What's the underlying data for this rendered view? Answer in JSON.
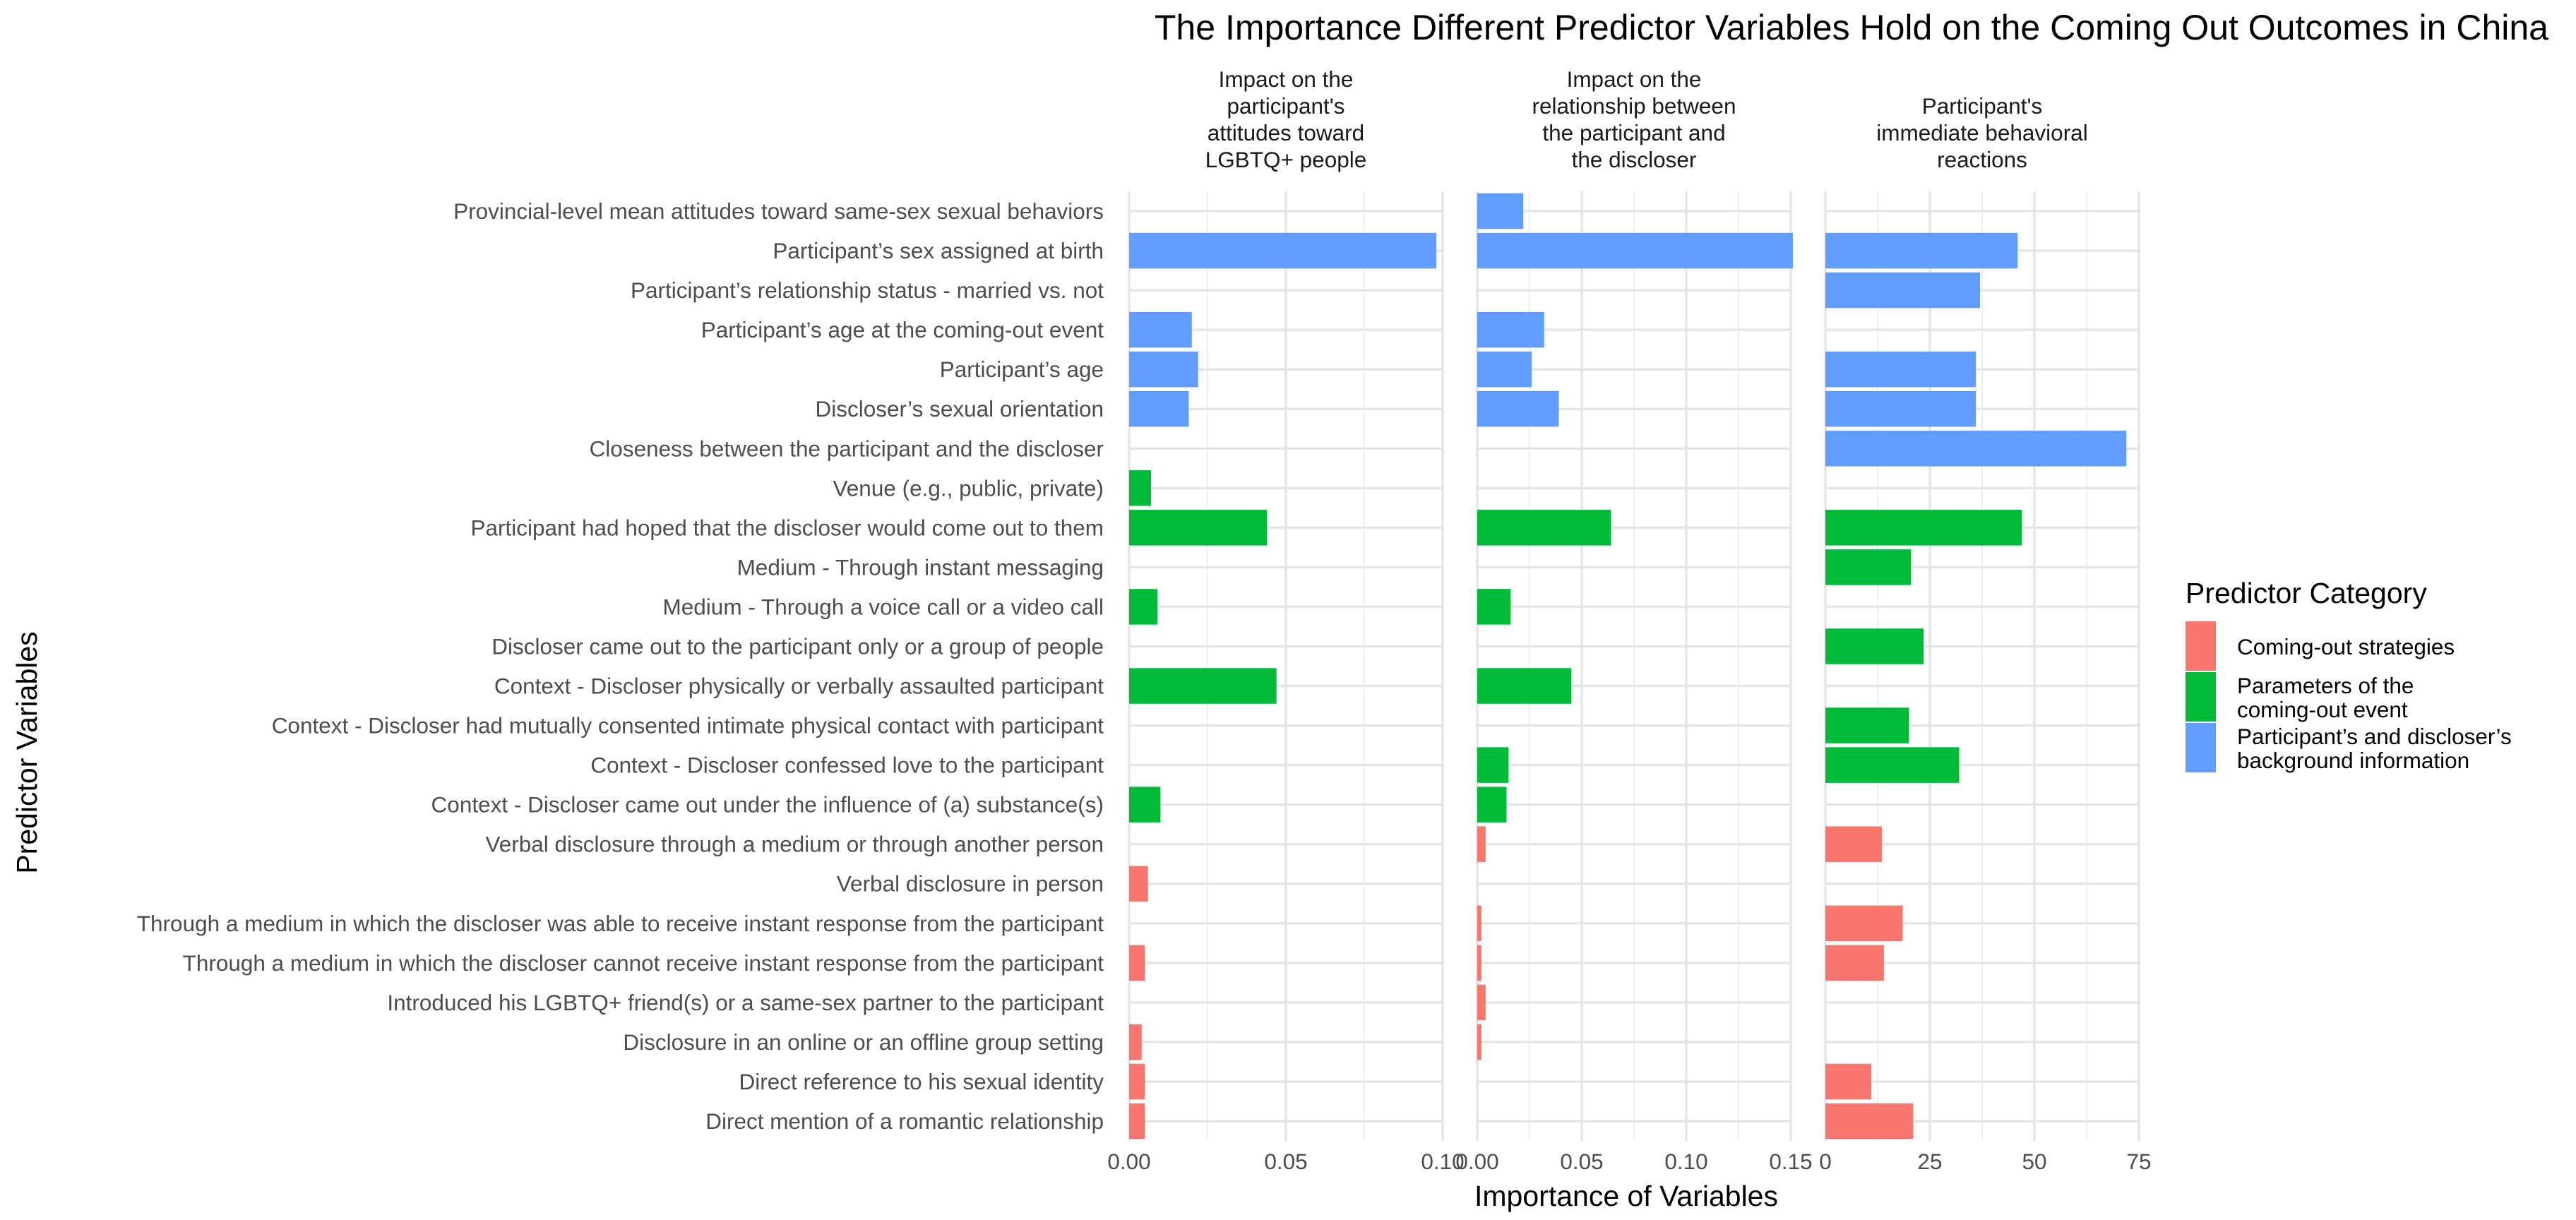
{
  "chart_data": {
    "type": "bar",
    "orientation": "horizontal",
    "title": "The Importance Different Predictor Variables Hold on the Coming Out Outcomes in China",
    "xlabel": "Importance of Variables",
    "ylabel": "Predictor Variables",
    "grid": true,
    "legend": {
      "title": "Predictor Category",
      "placement": "right",
      "entries": [
        {
          "key": "strategies",
          "label_lines": [
            "Coming-out strategies"
          ],
          "color": "#F8766D"
        },
        {
          "key": "parameters",
          "label_lines": [
            "Parameters of the  ",
            "coming-out event"
          ],
          "color": "#00BA38"
        },
        {
          "key": "background",
          "label_lines": [
            "Participant’s and discloser’s  ",
            "background information"
          ],
          "color": "#619CFF"
        }
      ]
    },
    "categories": [
      {
        "label": "Provincial-level mean attitudes toward same-sex sexual behaviors",
        "group": "background"
      },
      {
        "label": "Participant’s sex assigned at birth",
        "group": "background"
      },
      {
        "label": "Participant’s relationship status - married vs. not",
        "group": "background"
      },
      {
        "label": "Participant’s age at the coming-out event",
        "group": "background"
      },
      {
        "label": "Participant’s age",
        "group": "background"
      },
      {
        "label": "Discloser’s sexual orientation",
        "group": "background"
      },
      {
        "label": "Closeness between the participant and the discloser",
        "group": "background"
      },
      {
        "label": "Venue (e.g., public, private)",
        "group": "parameters"
      },
      {
        "label": "Participant had hoped that the discloser would come out to them",
        "group": "parameters"
      },
      {
        "label": "Medium - Through instant messaging",
        "group": "parameters"
      },
      {
        "label": "Medium - Through a voice call or a video call",
        "group": "parameters"
      },
      {
        "label": "Discloser came out to the participant only or a group of people",
        "group": "parameters"
      },
      {
        "label": "Context - Discloser physically or verbally assaulted participant",
        "group": "parameters"
      },
      {
        "label": "Context - Discloser had mutually consented intimate physical contact with participant",
        "group": "parameters"
      },
      {
        "label": "Context - Discloser confessed love to the participant",
        "group": "parameters"
      },
      {
        "label": "Context - Discloser came out under the influence of (a) substance(s)",
        "group": "parameters"
      },
      {
        "label": "Verbal disclosure through a medium or through another person",
        "group": "strategies"
      },
      {
        "label": "Verbal disclosure in person",
        "group": "strategies"
      },
      {
        "label": "Through a medium in which the discloser was able to receive instant response from the participant",
        "group": "strategies"
      },
      {
        "label": "Through a medium in which the discloser cannot receive instant response from the participant",
        "group": "strategies"
      },
      {
        "label": "Introduced his LGBTQ+ friend(s) or a same-sex partner to the participant",
        "group": "strategies"
      },
      {
        "label": "Disclosure in an online or an offline group setting",
        "group": "strategies"
      },
      {
        "label": "Direct reference to his sexual identity",
        "group": "strategies"
      },
      {
        "label": "Direct mention of a romantic relationship",
        "group": "strategies"
      }
    ],
    "panels": [
      {
        "strip_lines": [
          "Impact on the",
          "participant's",
          "attitudes toward",
          "LGBTQ+ people"
        ],
        "xlim": [
          0,
          0.1
        ],
        "ticks": [
          0,
          0.05,
          0.1
        ],
        "tick_labels": [
          "0.00",
          "0.05",
          "0.10"
        ],
        "values": [
          null,
          0.098,
          null,
          0.02,
          0.022,
          0.019,
          null,
          0.007,
          0.044,
          null,
          0.009,
          null,
          0.047,
          null,
          null,
          0.01,
          null,
          0.006,
          null,
          0.005,
          null,
          0.004,
          0.005,
          0.005
        ]
      },
      {
        "strip_lines": [
          "Impact on the",
          "relationship between",
          "the participant and",
          "the discloser"
        ],
        "xlim": [
          0,
          0.15
        ],
        "ticks": [
          0,
          0.05,
          0.1,
          0.15
        ],
        "tick_labels": [
          "0.00",
          "0.05",
          "0.10",
          "0.15"
        ],
        "values": [
          0.022,
          0.151,
          null,
          0.032,
          0.026,
          0.039,
          null,
          null,
          0.064,
          null,
          0.016,
          null,
          0.045,
          null,
          0.015,
          0.014,
          0.004,
          null,
          0.002,
          0.002,
          0.004,
          0.002,
          null,
          null
        ]
      },
      {
        "strip_lines": [
          "Participant's",
          "immediate behavioral",
          "reactions"
        ],
        "xlim": [
          0,
          75
        ],
        "ticks": [
          0,
          25,
          50,
          75
        ],
        "tick_labels": [
          "0",
          "25",
          "50",
          "75"
        ],
        "values": [
          null,
          46,
          37,
          null,
          36,
          36,
          72,
          null,
          47,
          20.5,
          null,
          23.5,
          null,
          20,
          32,
          null,
          13.5,
          null,
          18.5,
          14,
          null,
          null,
          11,
          21
        ]
      }
    ]
  }
}
